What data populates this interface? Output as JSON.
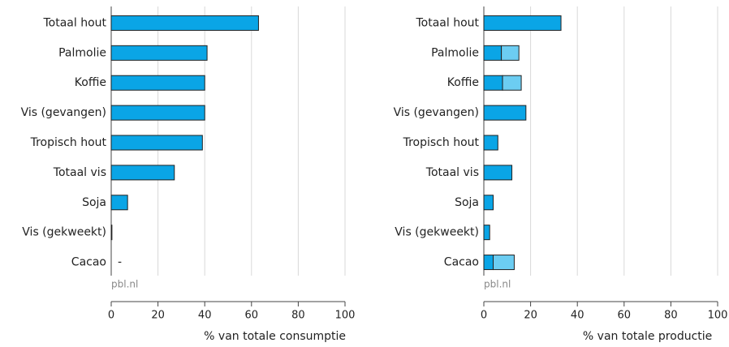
{
  "chart_data": [
    {
      "type": "bar",
      "orientation": "horizontal",
      "categories": [
        "Totaal hout",
        "Palmolie",
        "Koffie",
        "Vis (gevangen)",
        "Tropisch hout",
        "Totaal vis",
        "Soja",
        "Vis (gekweekt)",
        "Cacao"
      ],
      "series": [
        {
          "color": "#0aa5e6",
          "values": [
            63,
            41,
            40,
            40,
            39,
            27,
            7,
            0.3,
            null
          ],
          "value_labels": [
            null,
            null,
            null,
            null,
            null,
            null,
            null,
            null,
            "-"
          ]
        }
      ],
      "xlim": [
        0,
        100
      ],
      "xticks": [
        0,
        20,
        40,
        60,
        80,
        100
      ],
      "xlabel": "% van totale consumptie",
      "grid": true,
      "source": "pbl.nl"
    },
    {
      "type": "bar",
      "orientation": "horizontal",
      "stacked": true,
      "categories": [
        "Totaal hout",
        "Palmolie",
        "Koffie",
        "Vis (gevangen)",
        "Tropisch hout",
        "Totaal vis",
        "Soja",
        "Vis (gekweekt)",
        "Cacao"
      ],
      "series": [
        {
          "color": "#0aa5e6",
          "values": [
            33,
            7.5,
            8,
            18,
            6,
            12,
            4,
            2.5,
            4
          ]
        },
        {
          "color": "#6ccdf2",
          "values": [
            null,
            7.5,
            8,
            null,
            null,
            null,
            null,
            null,
            9
          ]
        }
      ],
      "xlim": [
        0,
        100
      ],
      "xticks": [
        0,
        20,
        40,
        60,
        80,
        100
      ],
      "xlabel": "% van totale productie",
      "grid": true,
      "source": "pbl.nl"
    }
  ]
}
